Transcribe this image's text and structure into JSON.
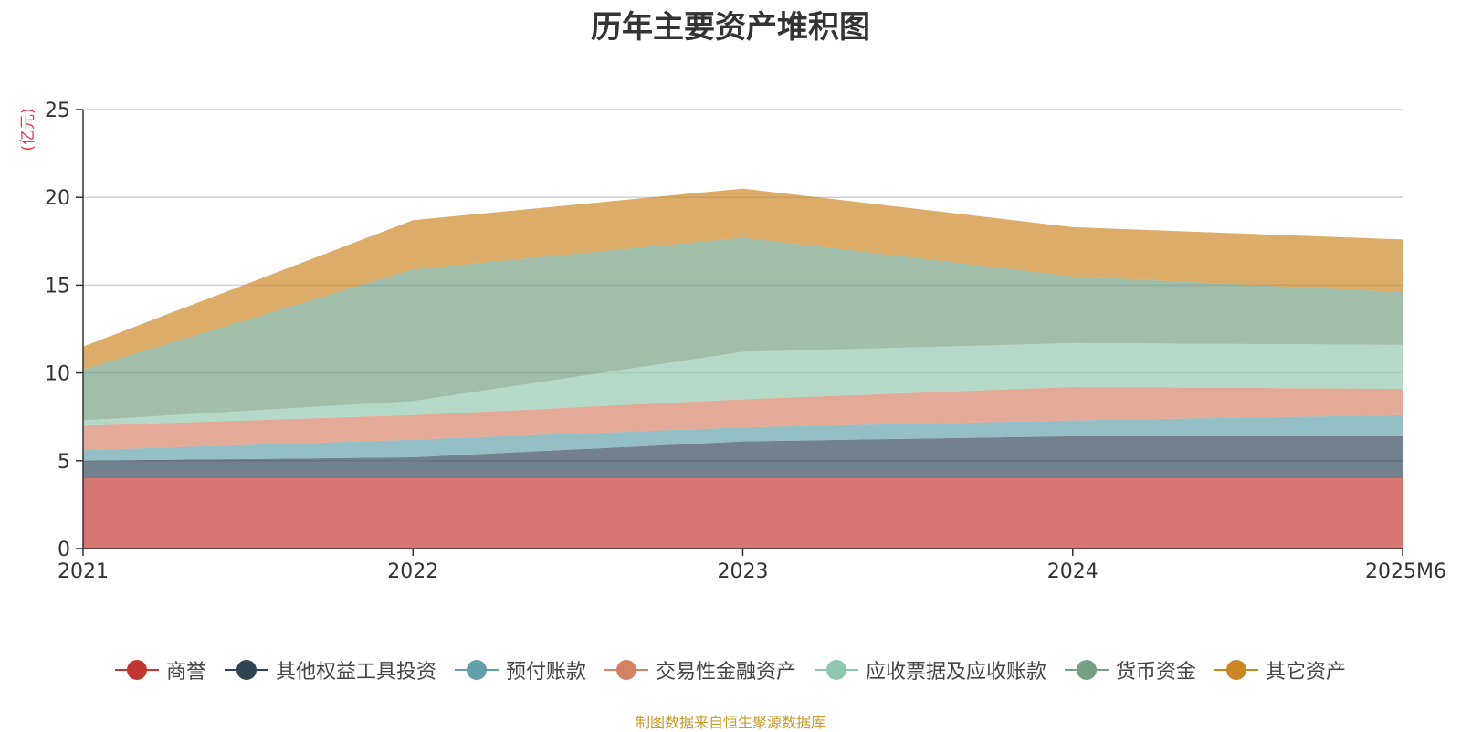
{
  "chart_data": {
    "type": "area",
    "stacked": true,
    "title": "历年主要资产堆积图",
    "ylabel": "(亿元)",
    "xlabel": "",
    "ylim": [
      0,
      25
    ],
    "yticks": [
      0,
      5,
      10,
      15,
      20,
      25
    ],
    "grid": true,
    "legend_position": "bottom",
    "categories": [
      "2021",
      "2022",
      "2023",
      "2024",
      "2025M6"
    ],
    "series": [
      {
        "name": "商誉",
        "color": "#c23531",
        "values": [
          4.0,
          4.0,
          4.0,
          4.0,
          4.0
        ]
      },
      {
        "name": "其他权益工具投资",
        "color": "#2f4554",
        "values": [
          1.0,
          1.2,
          2.1,
          2.4,
          2.4
        ]
      },
      {
        "name": "预付账款",
        "color": "#61a0a8",
        "values": [
          0.6,
          1.0,
          0.8,
          0.9,
          1.2
        ]
      },
      {
        "name": "交易性金融资产",
        "color": "#d48265",
        "values": [
          1.4,
          1.4,
          1.6,
          1.9,
          1.5
        ]
      },
      {
        "name": "应收票据及应收账款",
        "color": "#91c7ae",
        "values": [
          0.3,
          0.8,
          2.7,
          2.5,
          2.5
        ]
      },
      {
        "name": "货币资金",
        "color": "#749f83",
        "values": [
          2.9,
          7.5,
          6.5,
          3.8,
          3.0
        ]
      },
      {
        "name": "其它资产",
        "color": "#ca8622",
        "values": [
          1.3,
          2.8,
          2.8,
          2.8,
          3.0
        ]
      }
    ],
    "source": "制图数据来自恒生聚源数据库"
  }
}
